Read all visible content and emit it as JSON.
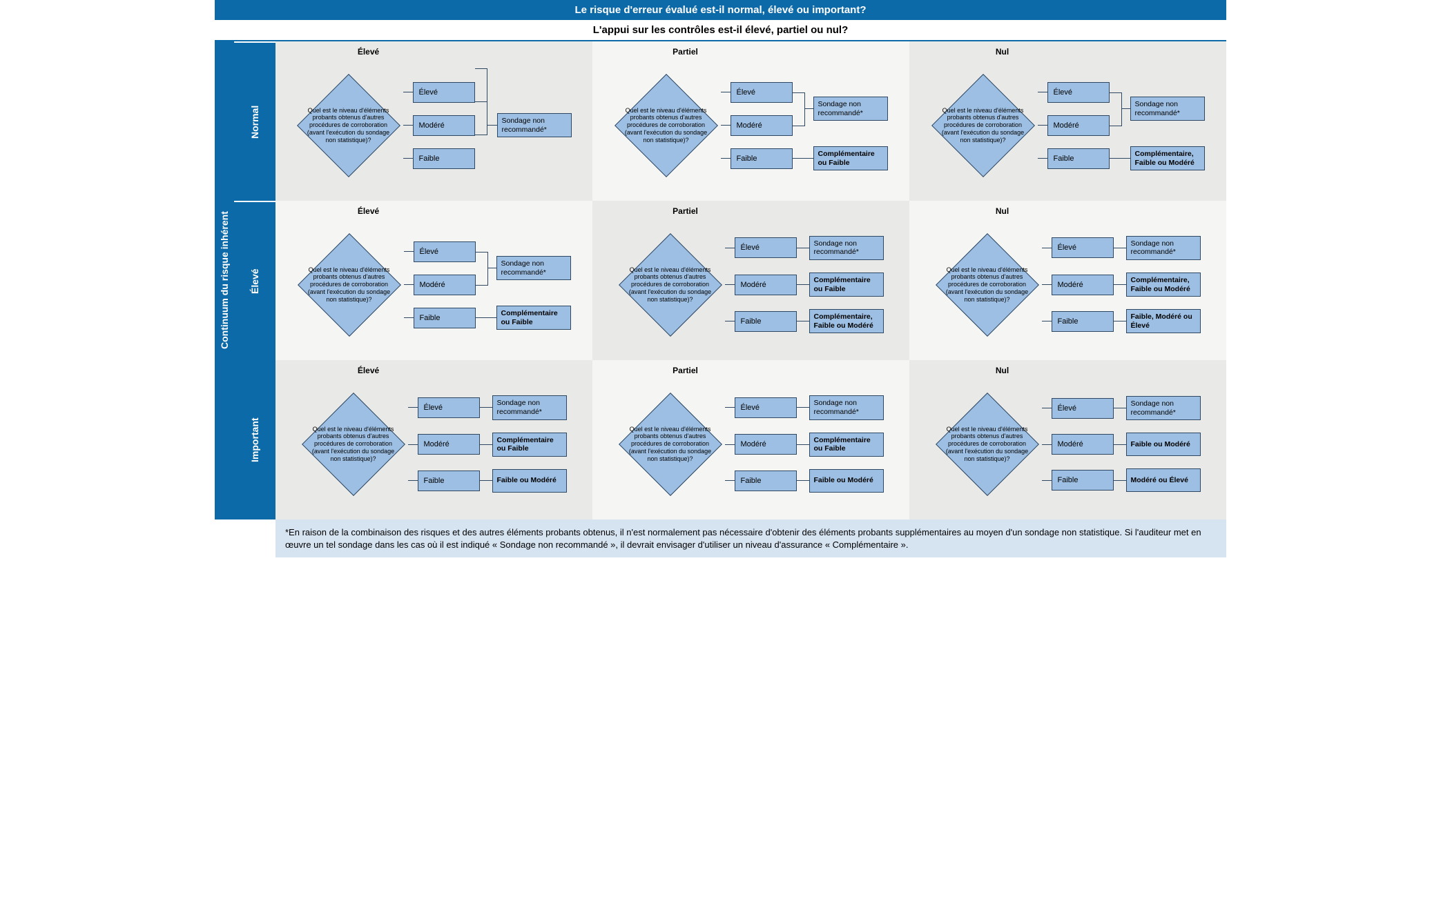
{
  "colors": {
    "header_bg": "#0d6aa8",
    "header_fg": "#ffffff",
    "diamond_fill": "#9dbfe3",
    "box_fill": "#9dbfe3",
    "box_border": "#2d4762",
    "cell_bg_a": "#e9e9e8",
    "cell_bg_b": "#f5f5f4",
    "footnote_bg": "#d6e3f1"
  },
  "header_top": "Le risque d'erreur évalué est-il normal, élevé ou important?",
  "header_sub": "L'appui sur les contrôles est-il élevé, partiel ou nul?",
  "side_label": "Continuum du risque inhérent",
  "row_labels": [
    "Normal",
    "Élevé",
    "Important"
  ],
  "col_labels": [
    "Élevé",
    "Partiel",
    "Nul"
  ],
  "diamond_text": "Quel est le niveau d'éléments probants obtenus d'autres procédures de corroboration (avant l'exécution du sondage non statistique)?",
  "levels": [
    "Élevé",
    "Modéré",
    "Faible"
  ],
  "cells": [
    {
      "merge": "all3",
      "outcomes": [
        {
          "t": "Sondage non recommandé*",
          "b": false
        }
      ]
    },
    {
      "merge": "top2",
      "outcomes": [
        {
          "t": "Sondage non recommandé*",
          "b": false
        },
        {
          "t": "Complémentaire ou Faible",
          "b": true
        }
      ]
    },
    {
      "merge": "top2",
      "outcomes": [
        {
          "t": "Sondage non recommandé*",
          "b": false
        },
        {
          "t": "Complémentaire, Faible ou Modéré",
          "b": true
        }
      ]
    },
    {
      "merge": "top2",
      "outcomes": [
        {
          "t": "Sondage non recommandé*",
          "b": false
        },
        {
          "t": "Complémentaire ou Faible",
          "b": true
        }
      ]
    },
    {
      "merge": "none",
      "outcomes": [
        {
          "t": "Sondage non recommandé*",
          "b": false
        },
        {
          "t": "Complémentaire ou Faible",
          "b": true
        },
        {
          "t": "Complémentaire, Faible ou Modéré",
          "b": true
        }
      ]
    },
    {
      "merge": "none",
      "outcomes": [
        {
          "t": "Sondage non recommandé*",
          "b": false
        },
        {
          "t": "Complémentaire, Faible ou Modéré",
          "b": true
        },
        {
          "t": "Faible, Modéré ou Élevé",
          "b": true
        }
      ]
    },
    {
      "merge": "none",
      "outcomes": [
        {
          "t": "Sondage non recommandé*",
          "b": false
        },
        {
          "t": "Complémentaire ou Faible",
          "b": true
        },
        {
          "t": "Faible ou Modéré",
          "b": true
        }
      ]
    },
    {
      "merge": "none",
      "outcomes": [
        {
          "t": "Sondage non recommandé*",
          "b": false
        },
        {
          "t": "Complémentaire ou Faible",
          "b": true
        },
        {
          "t": "Faible ou Modéré",
          "b": true
        }
      ]
    },
    {
      "merge": "none",
      "outcomes": [
        {
          "t": "Sondage non recommandé*",
          "b": false
        },
        {
          "t": "Faible ou Modéré",
          "b": true
        },
        {
          "t": "Modéré ou Élevé",
          "b": true
        }
      ]
    }
  ],
  "footnote": "*En raison de la combinaison des risques et des autres éléments probants obtenus, il n'est normalement pas nécessaire d'obtenir des éléments probants supplémentaires au moyen d'un sondage non statistique. Si l'auditeur met en œuvre un tel sondage dans les cas où il est indiqué « Sondage non recommandé », il devrait envisager d'utiliser un niveau d'assurance « Complémentaire »."
}
